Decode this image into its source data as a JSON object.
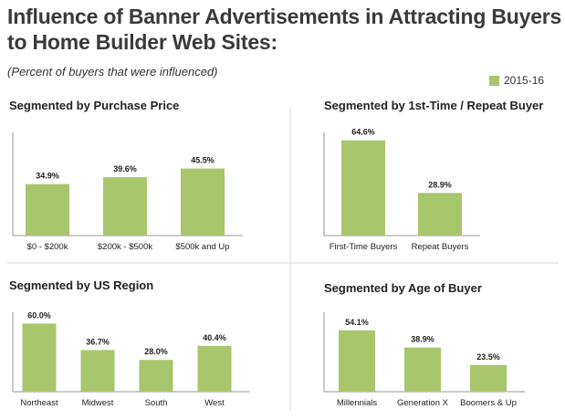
{
  "title": "Influence of Banner Advertisements in Attracting Buyers to Home Builder Web Sites:",
  "subtitle": "(Percent of buyers that were influenced)",
  "legend": {
    "label": "2015-16",
    "color": "#a8c66c"
  },
  "colors": {
    "bar": "#a8c66c",
    "axis": "#999999",
    "divider": "#d9d9d9"
  },
  "chart_data": [
    {
      "type": "bar",
      "title": "Segmented by Purchase Price",
      "categories": [
        "$0 - $200k",
        "$200k - $500k",
        "$500k and Up"
      ],
      "series": [
        {
          "name": "2015-16",
          "values": [
            34.9,
            39.6,
            45.5
          ]
        }
      ],
      "value_labels": [
        "34.9%",
        "39.6%",
        "45.5%"
      ],
      "ylim": [
        0,
        70
      ]
    },
    {
      "type": "bar",
      "title": "Segmented by 1st-Time / Repeat Buyer",
      "categories": [
        "First-Time Buyers",
        "Repeat Buyers"
      ],
      "series": [
        {
          "name": "2015-16",
          "values": [
            64.6,
            28.9
          ]
        }
      ],
      "value_labels": [
        "64.6%",
        "28.9%"
      ],
      "ylim": [
        0,
        70
      ]
    },
    {
      "type": "bar",
      "title": "Segmented by US Region",
      "categories": [
        "Northeast",
        "Midwest",
        "South",
        "West"
      ],
      "series": [
        {
          "name": "2015-16",
          "values": [
            60.0,
            36.7,
            28.0,
            40.4
          ]
        }
      ],
      "value_labels": [
        "60.0%",
        "36.7%",
        "28.0%",
        "40.4%"
      ],
      "ylim": [
        0,
        70
      ]
    },
    {
      "type": "bar",
      "title": "Segmented by Age of Buyer",
      "categories": [
        "Millennials",
        "Generation X",
        "Boomers & Up"
      ],
      "series": [
        {
          "name": "2015-16",
          "values": [
            54.1,
            38.9,
            23.5
          ]
        }
      ],
      "value_labels": [
        "54.1%",
        "38.9%",
        "23.5%"
      ],
      "ylim": [
        0,
        70
      ]
    }
  ]
}
